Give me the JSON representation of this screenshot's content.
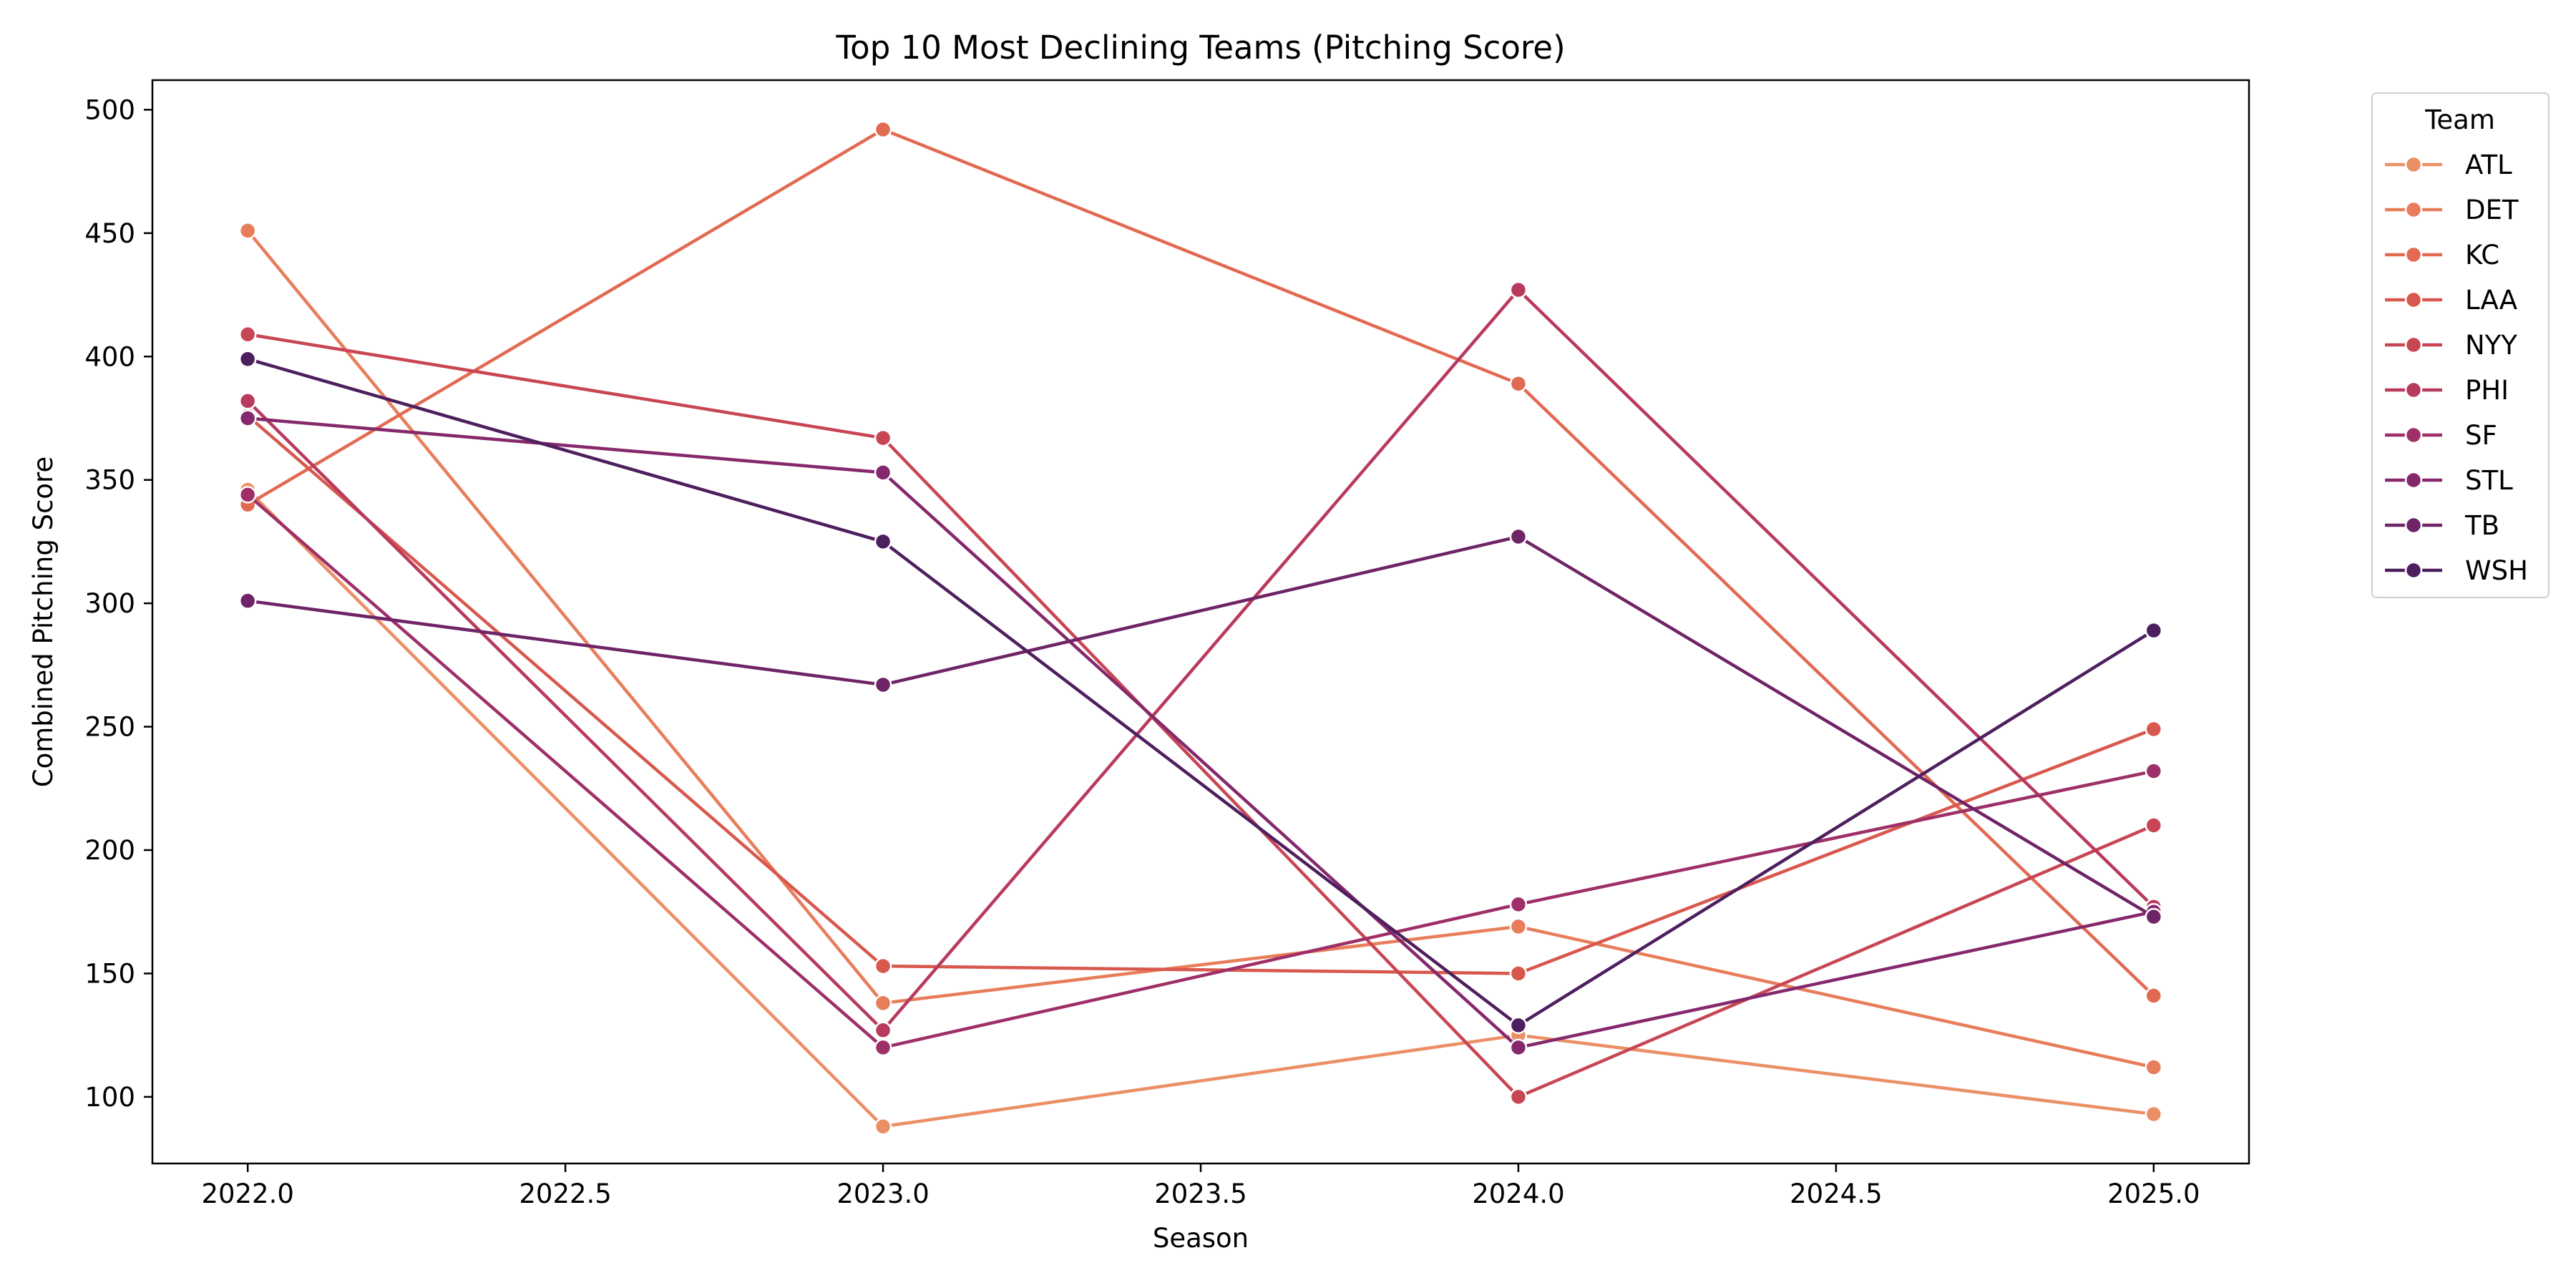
{
  "chart_data": {
    "type": "line",
    "title": "Top 10 Most Declining Teams (Pitching Score)",
    "xlabel": "Season",
    "ylabel": "Combined Pitching Score",
    "x": [
      2022,
      2023,
      2024,
      2025
    ],
    "xlim": [
      2021.85,
      2025.15
    ],
    "ylim": [
      73,
      512
    ],
    "xticks": [
      2022,
      2022.5,
      2023,
      2023.5,
      2024,
      2024.5,
      2025
    ],
    "xtick_labels": [
      "2022.0",
      "2022.5",
      "2023.0",
      "2023.5",
      "2024.0",
      "2024.5",
      "2025.0"
    ],
    "yticks": [
      100,
      150,
      200,
      250,
      300,
      350,
      400,
      450,
      500
    ],
    "ytick_labels": [
      "100",
      "150",
      "200",
      "250",
      "300",
      "350",
      "400",
      "450",
      "500"
    ],
    "grid": false,
    "legend_title": "Team",
    "legend_position": "outside-top-right",
    "series": [
      {
        "name": "ATL",
        "color": "#eb8f66",
        "values": [
          346,
          88,
          125,
          93
        ]
      },
      {
        "name": "DET",
        "color": "#e77d5a",
        "values": [
          451,
          138,
          169,
          112
        ]
      },
      {
        "name": "KC",
        "color": "#e26a52",
        "values": [
          340,
          492,
          389,
          141
        ]
      },
      {
        "name": "LAA",
        "color": "#d8584e",
        "values": [
          376,
          153,
          150,
          249
        ]
      },
      {
        "name": "NYY",
        "color": "#c84654",
        "values": [
          409,
          367,
          100,
          210
        ]
      },
      {
        "name": "PHI",
        "color": "#b83a5c",
        "values": [
          382,
          127,
          427,
          177
        ]
      },
      {
        "name": "SF",
        "color": "#9e2f68",
        "values": [
          344,
          120,
          178,
          232
        ]
      },
      {
        "name": "STL",
        "color": "#85286c",
        "values": [
          375,
          353,
          120,
          175
        ]
      },
      {
        "name": "TB",
        "color": "#6e2466",
        "values": [
          301,
          267,
          327,
          173
        ]
      },
      {
        "name": "WSH",
        "color": "#4e1f5e",
        "values": [
          399,
          325,
          129,
          289
        ]
      }
    ]
  }
}
